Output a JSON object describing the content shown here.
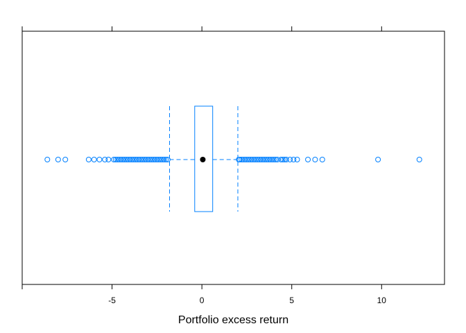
{
  "chart_data": {
    "type": "box",
    "orientation": "horizontal",
    "xlabel": "Portfolio excess return",
    "ylabel": "",
    "title": "",
    "xlim": [
      -10,
      13.5
    ],
    "xticks": [
      -5,
      0,
      5,
      10
    ],
    "xtick_labels": [
      "-5",
      "0",
      "5",
      "10"
    ],
    "grid": false,
    "legend": "none",
    "color": "#0080ff",
    "median_color": "#000000",
    "box": {
      "median": 0.05,
      "q1": -0.4,
      "q3": 0.6,
      "whisker_low": -1.8,
      "whisker_high": 2.0
    },
    "outliers": [
      -8.6,
      -8.0,
      -7.6,
      -6.3,
      -6.0,
      -5.7,
      -5.4,
      -5.2,
      -4.9,
      -4.8,
      -4.7,
      -4.6,
      -4.5,
      -4.4,
      -4.3,
      -4.2,
      -4.1,
      -4.0,
      -3.9,
      -3.8,
      -3.7,
      -3.6,
      -3.5,
      -3.4,
      -3.3,
      -3.2,
      -3.1,
      -3.0,
      -2.9,
      -2.8,
      -2.7,
      -2.6,
      -2.5,
      -2.4,
      -2.3,
      -2.2,
      -2.1,
      -2.0,
      -1.9,
      2.05,
      2.1,
      2.2,
      2.3,
      2.4,
      2.5,
      2.6,
      2.7,
      2.8,
      2.9,
      3.0,
      3.1,
      3.2,
      3.3,
      3.4,
      3.5,
      3.6,
      3.7,
      3.8,
      3.9,
      4.0,
      4.1,
      4.2,
      4.4,
      4.5,
      4.6,
      4.7,
      4.9,
      5.1,
      5.3,
      5.9,
      6.3,
      6.7,
      9.8,
      12.1
    ]
  }
}
